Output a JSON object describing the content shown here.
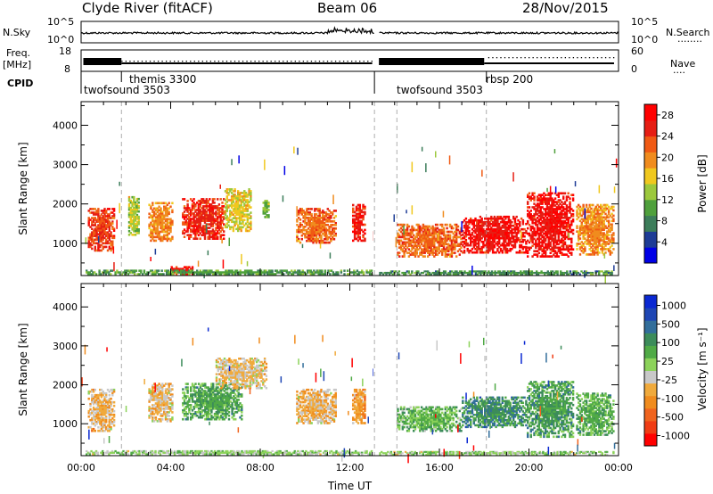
{
  "header": {
    "station": "Clyde River (fitACF)",
    "beam": "Beam 06",
    "date": "28/Nov/2015"
  },
  "strip_labels": {
    "nsky": "N.Sky",
    "freq": "Freq.",
    "freq_unit": "[MHz]",
    "cpid": "CPID",
    "nsearch": "N.Search",
    "nsearch_dots": "········",
    "nave": "Nave",
    "nave_dots": "····",
    "noise_ticks_left": [
      "10^5",
      "10^0"
    ],
    "noise_ticks_right": [
      "10^5",
      "10^0"
    ],
    "freq_ticks": [
      "18",
      "8"
    ],
    "nave_ticks": [
      "60",
      "0"
    ]
  },
  "cpid_modes": [
    {
      "label": "twofsound 3503",
      "row": 2
    },
    {
      "label": "themis 3300",
      "row": 1
    },
    {
      "label": "twofsound 3503",
      "row": 2
    },
    {
      "label": "rbsp 200",
      "row": 1
    }
  ],
  "chart_data": [
    {
      "type": "heatmap",
      "title": "",
      "xlabel": "Time UT",
      "ylabel": "Slant Range [km]",
      "xlim": [
        "00:00",
        "24:00"
      ],
      "ylim": [
        180,
        4600
      ],
      "x_ticks": [
        "00:00",
        "04:00",
        "08:00",
        "12:00",
        "16:00",
        "20:00",
        "00:00"
      ],
      "y_ticks": [
        "1000",
        "2000",
        "3000",
        "4000"
      ],
      "colorbar": {
        "label": "Power [dB]",
        "ticks": [
          "4",
          "8",
          "12",
          "16",
          "20",
          "24",
          "28"
        ],
        "range": [
          0,
          30
        ],
        "colors": [
          "#0000e6",
          "#1e3c96",
          "#3c7d5a",
          "#4fa03c",
          "#9cc83c",
          "#f0c81e",
          "#f08c1e",
          "#f05a14",
          "#e61e14",
          "#ff0000"
        ]
      },
      "clusters": [
        {
          "t0": 0.3,
          "t1": 1.5,
          "r0": 800,
          "r1": 1900,
          "v": 24
        },
        {
          "t0": 2.1,
          "t1": 2.6,
          "r0": 1200,
          "r1": 2200,
          "v": 14
        },
        {
          "t0": 3.0,
          "t1": 4.1,
          "r0": 1050,
          "r1": 2050,
          "v": 20
        },
        {
          "t0": 4.5,
          "t1": 6.4,
          "r0": 1100,
          "r1": 2150,
          "v": 25
        },
        {
          "t0": 6.4,
          "t1": 7.6,
          "r0": 1300,
          "r1": 2400,
          "v": 16
        },
        {
          "t0": 8.1,
          "t1": 8.4,
          "r0": 1650,
          "r1": 2150,
          "v": 12
        },
        {
          "t0": 9.6,
          "t1": 11.4,
          "r0": 1000,
          "r1": 1900,
          "v": 22
        },
        {
          "t0": 12.1,
          "t1": 12.7,
          "r0": 1050,
          "r1": 2000,
          "v": 26
        },
        {
          "t0": 14.1,
          "t1": 17.0,
          "r0": 650,
          "r1": 1500,
          "v": 22
        },
        {
          "t0": 17.0,
          "t1": 19.9,
          "r0": 750,
          "r1": 1700,
          "v": 27
        },
        {
          "t0": 19.9,
          "t1": 22.0,
          "r0": 650,
          "r1": 2300,
          "v": 27
        },
        {
          "t0": 22.1,
          "t1": 23.8,
          "r0": 700,
          "r1": 2000,
          "v": 20
        },
        {
          "t0": 4.0,
          "t1": 5.0,
          "r0": 200,
          "r1": 420,
          "v": 26
        },
        {
          "t0": 0.2,
          "t1": 13.0,
          "r0": 200,
          "r1": 330,
          "v": 10
        },
        {
          "t0": 13.3,
          "t1": 23.8,
          "r0": 200,
          "r1": 310,
          "v": 9
        }
      ]
    },
    {
      "type": "heatmap",
      "title": "",
      "xlabel": "Time UT",
      "ylabel": "Slant Range [km]",
      "xlim": [
        "00:00",
        "24:00"
      ],
      "ylim": [
        180,
        4600
      ],
      "x_ticks": [
        "00:00",
        "04:00",
        "08:00",
        "12:00",
        "16:00",
        "20:00",
        "00:00"
      ],
      "y_ticks": [
        "1000",
        "2000",
        "3000",
        "4000"
      ],
      "colorbar": {
        "label": "Velocity [m s⁻¹]",
        "ticks": [
          "1000",
          "500",
          "100",
          "25",
          "-25",
          "-100",
          "-500",
          "-1000"
        ],
        "range": [
          -1200,
          1200
        ],
        "colors": [
          "#ff0000",
          "#f03c14",
          "#f0641e",
          "#f08c1e",
          "#f0aa3c",
          "#c8c8c8",
          "#8cd25a",
          "#50aa46",
          "#3c8c5a",
          "#326e9b",
          "#1e46b4",
          "#0a28d2"
        ]
      },
      "clusters": [
        {
          "t0": 0.3,
          "t1": 1.5,
          "r0": 800,
          "r1": 1900,
          "v": -300
        },
        {
          "t0": 3.0,
          "t1": 4.1,
          "r0": 1050,
          "r1": 2050,
          "v": -250
        },
        {
          "t0": 4.5,
          "t1": 7.2,
          "r0": 1100,
          "r1": 2050,
          "v": 350
        },
        {
          "t0": 6.0,
          "t1": 8.3,
          "r0": 1900,
          "r1": 2700,
          "v": -200
        },
        {
          "t0": 9.6,
          "t1": 11.4,
          "r0": 1000,
          "r1": 1900,
          "v": -280
        },
        {
          "t0": 12.1,
          "t1": 12.7,
          "r0": 1000,
          "r1": 1900,
          "v": -400
        },
        {
          "t0": 14.1,
          "t1": 17.0,
          "r0": 800,
          "r1": 1450,
          "v": 250
        },
        {
          "t0": 17.0,
          "t1": 19.9,
          "r0": 900,
          "r1": 1700,
          "v": 500
        },
        {
          "t0": 19.9,
          "t1": 22.0,
          "r0": 650,
          "r1": 2100,
          "v": 400
        },
        {
          "t0": 22.1,
          "t1": 23.8,
          "r0": 700,
          "r1": 1800,
          "v": 300
        },
        {
          "t0": 0.2,
          "t1": 13.0,
          "r0": 200,
          "r1": 320,
          "v": 90
        },
        {
          "t0": 13.3,
          "t1": 23.8,
          "r0": 200,
          "r1": 300,
          "v": 60
        }
      ]
    }
  ]
}
